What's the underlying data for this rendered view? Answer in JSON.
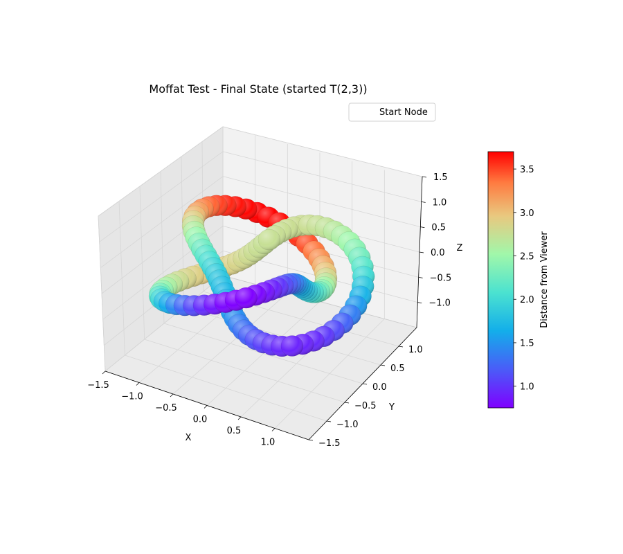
{
  "chart_data": {
    "type": "scatter",
    "projection": "3d",
    "title": "Moffat Test - Final State (started T(2,3))",
    "xlabel": "X",
    "ylabel": "Y",
    "zlabel": "Z",
    "xlim": [
      -1.5,
      1.5
    ],
    "ylim": [
      -1.5,
      1.5
    ],
    "zlim": [
      -1.5,
      1.5
    ],
    "xticks": [
      "−1.5",
      "−1.0",
      "−0.5",
      "0.0",
      "0.5",
      "1.0"
    ],
    "yticks": [
      "−1.5",
      "−1.0",
      "−0.5",
      "0.0",
      "0.5",
      "1.0"
    ],
    "zticks": [
      "−1.0",
      "−0.5",
      "0.0",
      "0.5",
      "1.0",
      "1.5"
    ],
    "grid": true,
    "legend": {
      "position": "upper-right",
      "entries": [
        "Start Node"
      ]
    },
    "colorbar": {
      "label": "Distance from Viewer",
      "range": [
        0.75,
        3.7
      ],
      "ticks": [
        "1.0",
        "1.5",
        "2.0",
        "2.5",
        "3.0",
        "3.5"
      ],
      "colormap": "rainbow"
    },
    "series": [
      {
        "curve": "trefoil knot T(2,3)",
        "node_count": 120,
        "radius_major": 1.0,
        "radius_minor": 0.4,
        "z_amplitude": 0.5,
        "color_by": "distance from viewer"
      }
    ]
  }
}
